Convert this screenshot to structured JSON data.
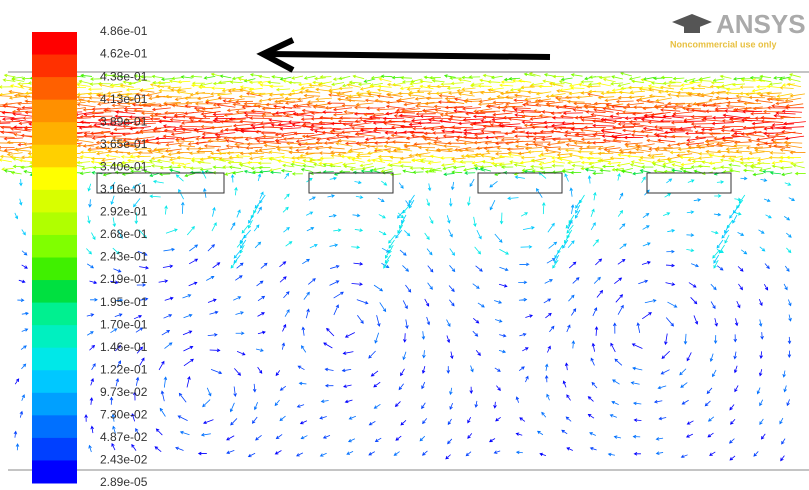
{
  "colorbar": {
    "labels": [
      "4.86e-01",
      "4.62e-01",
      "4.38e-01",
      "4.13e-01",
      "3.89e-01",
      "3.65e-01",
      "3.40e-01",
      "3.16e-01",
      "2.92e-01",
      "2.68e-01",
      "2.43e-01",
      "2.19e-01",
      "1.95e-01",
      "1.70e-01",
      "1.46e-01",
      "1.22e-01",
      "9.73e-02",
      "7.30e-02",
      "4.87e-02",
      "2.43e-02",
      "2.89e-05"
    ],
    "colors": [
      "#ff0000",
      "#ff3000",
      "#ff6000",
      "#ff9000",
      "#ffb000",
      "#ffd000",
      "#ffff00",
      "#d8ff00",
      "#b0ff00",
      "#80ff00",
      "#40f000",
      "#00e040",
      "#00f090",
      "#00f0c0",
      "#00e8e8",
      "#00c8ff",
      "#00a0ff",
      "#0070ff",
      "#0040ff",
      "#0000ff"
    ]
  },
  "logo": {
    "brand": "ANSYS",
    "note": "Noncommercial use only"
  }
}
